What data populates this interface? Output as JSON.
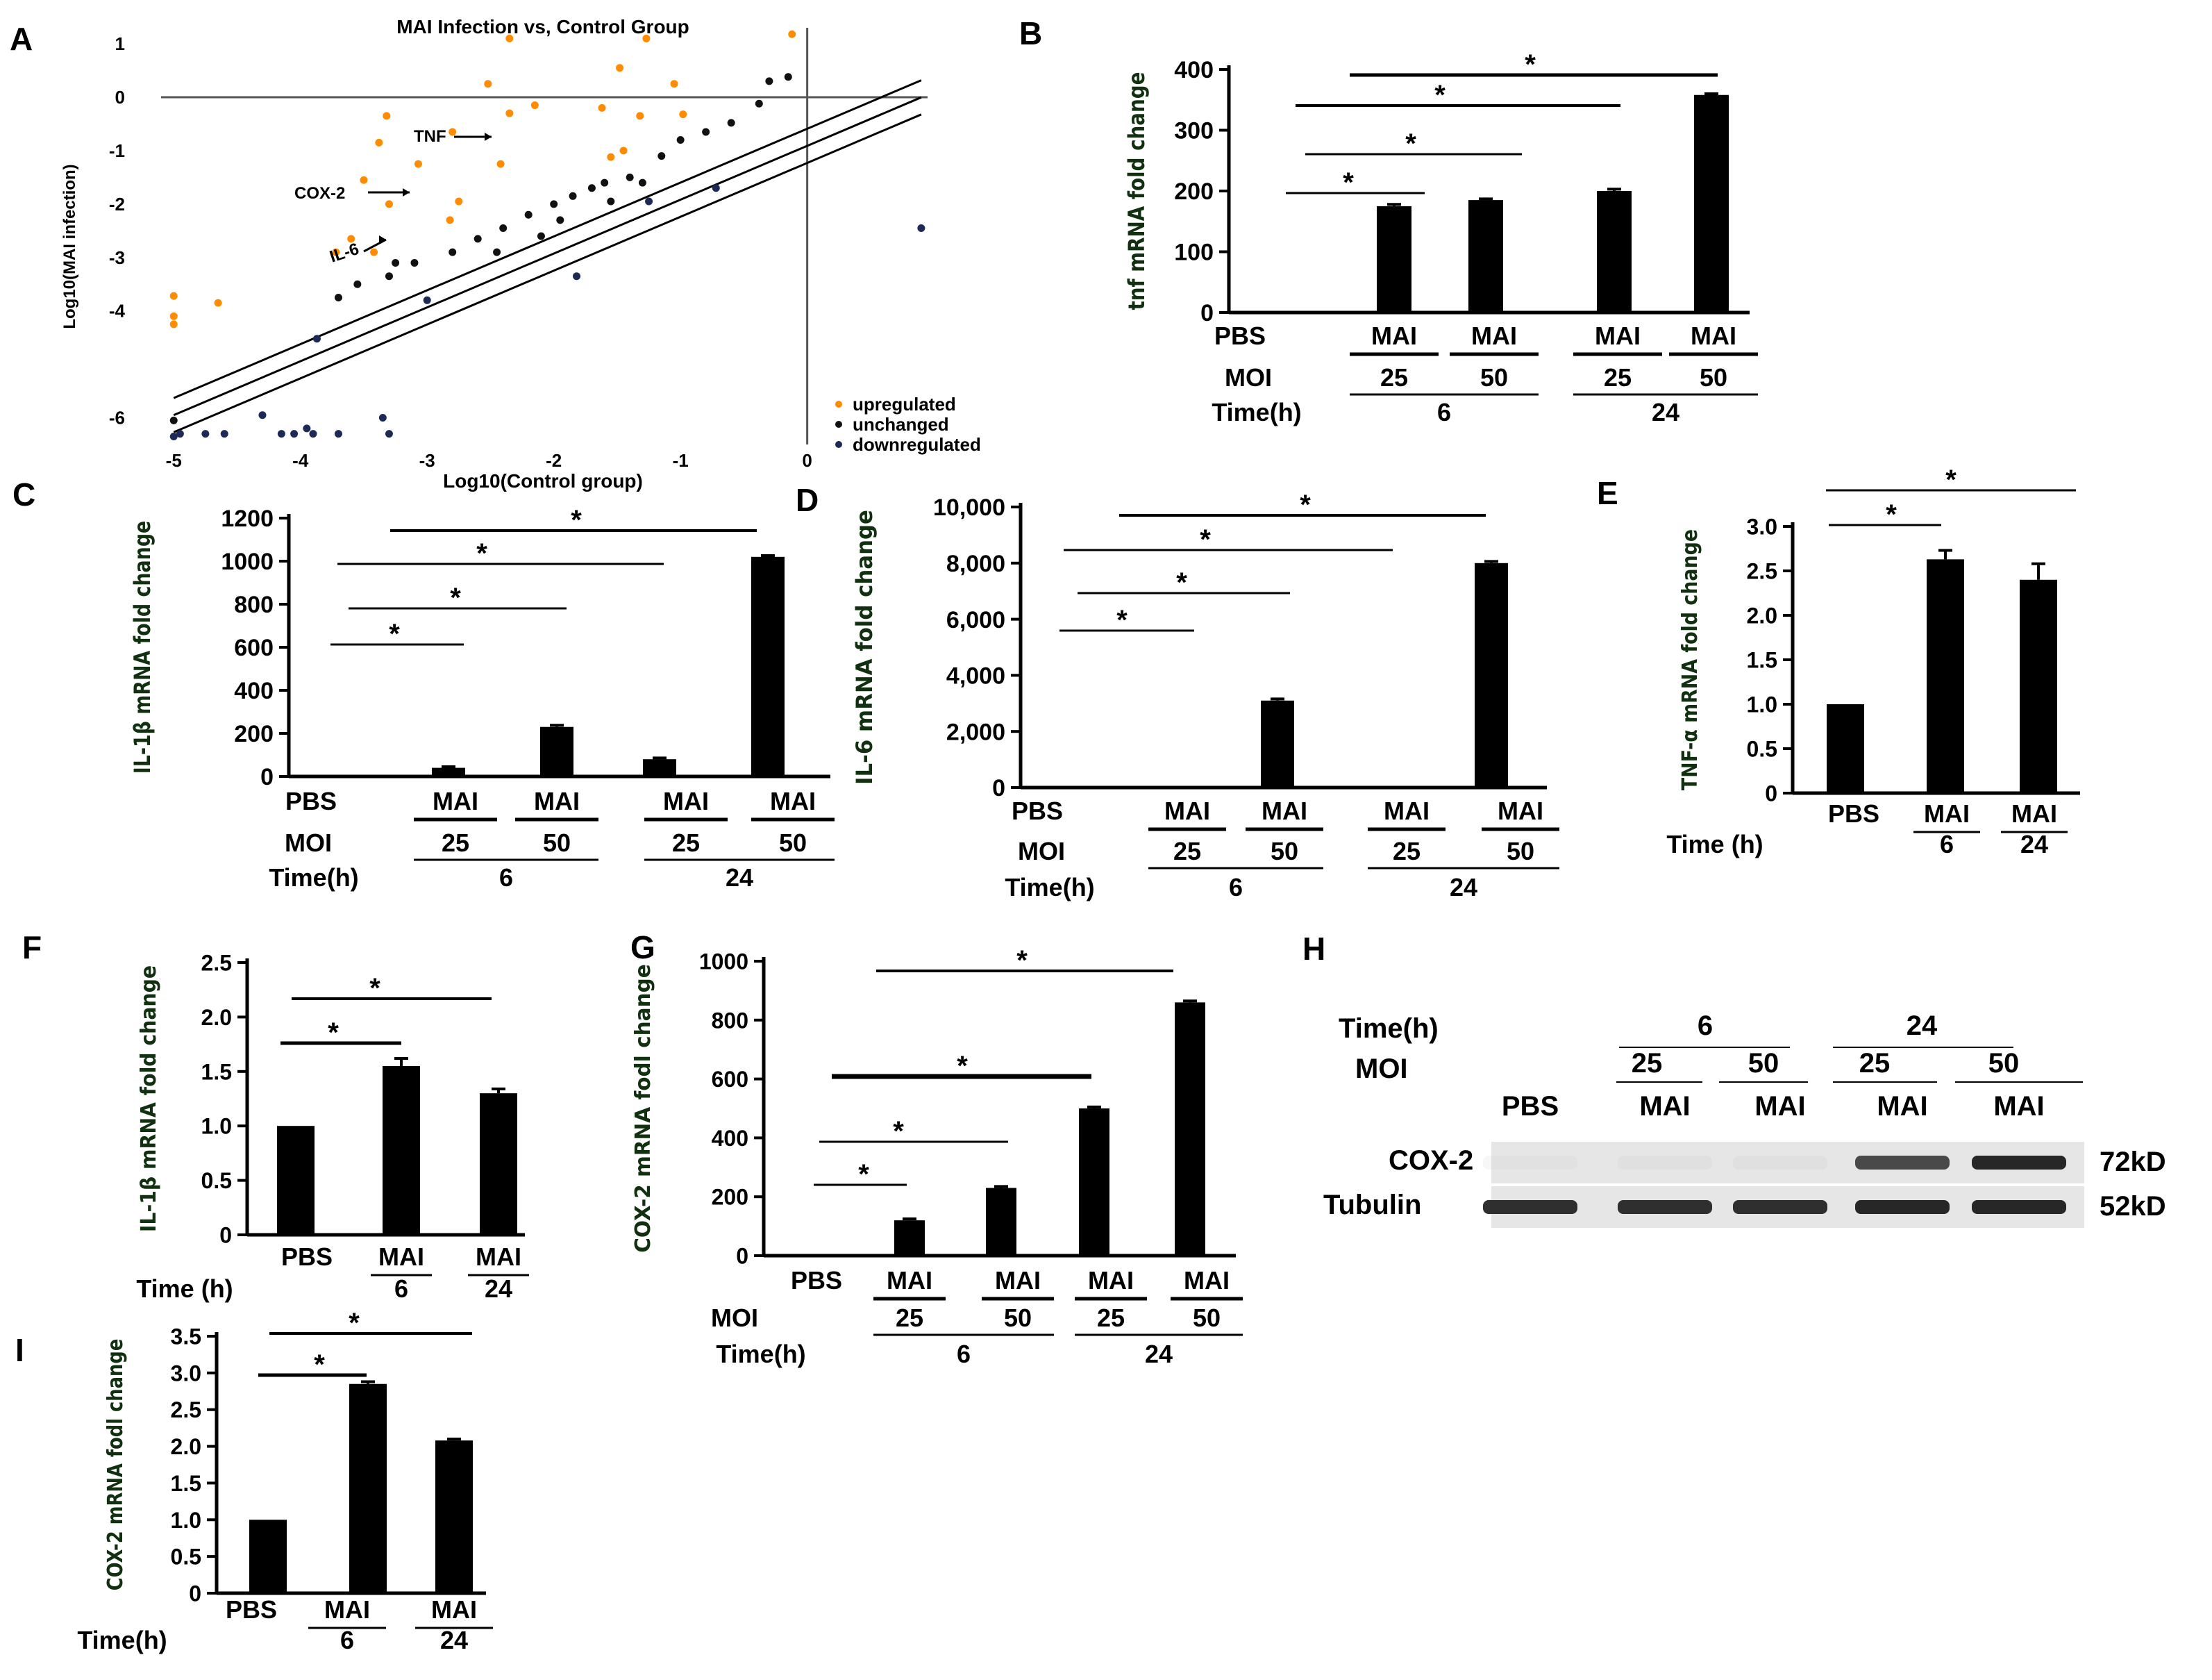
{
  "chart_data": [
    {
      "id": "A",
      "panel_letter": "A",
      "type": "scatter",
      "title": "MAI Infection vs, Control Group",
      "xlabel": "Log10(Control group)",
      "ylabel": "Log10(MAI infection)",
      "xlim": [
        -5.1,
        0.95
      ],
      "ylim": [
        -6.5,
        1.3
      ],
      "x_ticks": [
        -5,
        -4,
        -3,
        -2,
        -1,
        0
      ],
      "y_ticks": [
        1,
        0,
        -1,
        -2,
        -3,
        -4,
        -6
      ],
      "tick_labels_x": [
        "-5",
        "-4",
        "-3",
        "-2",
        "-1",
        "0"
      ],
      "tick_labels_y": [
        "1",
        "0",
        "-1",
        "-2",
        "-3",
        "-4",
        "-6"
      ],
      "annotations": [
        "TNF",
        "COX-2",
        "IL-6"
      ],
      "legend": [
        "upregulated",
        "unchanged",
        "downregulated"
      ],
      "legend_placement": "bottom-right",
      "colors": {
        "upregulated": "#ff8c00",
        "unchanged": "#111111",
        "downregulated": "#1c2a55"
      },
      "series": [
        {
          "name": "upregulated",
          "points": [
            [
              -2.35,
              1.1
            ],
            [
              -1.27,
              1.1
            ],
            [
              -0.12,
              1.18
            ],
            [
              -1.48,
              0.55
            ],
            [
              -1.05,
              0.25
            ],
            [
              -2.52,
              0.25
            ],
            [
              -3.32,
              -0.35
            ],
            [
              -2.35,
              -0.3
            ],
            [
              -1.62,
              -0.2
            ],
            [
              -1.32,
              -0.35
            ],
            [
              -0.98,
              -0.32
            ],
            [
              -2.15,
              -0.15
            ],
            [
              -2.8,
              -0.65
            ],
            [
              -3.38,
              -0.85
            ],
            [
              -2.42,
              -1.25
            ],
            [
              -1.55,
              -1.12
            ],
            [
              -1.45,
              -1.0
            ],
            [
              -3.07,
              -1.25
            ],
            [
              -3.5,
              -1.55
            ],
            [
              -3.3,
              -2.0
            ],
            [
              -2.75,
              -1.95
            ],
            [
              -2.82,
              -2.3
            ],
            [
              -3.6,
              -2.65
            ],
            [
              -3.72,
              -2.9
            ],
            [
              -3.42,
              -2.9
            ],
            [
              -4.65,
              -3.85
            ],
            [
              -5.0,
              -3.72
            ],
            [
              -5.0,
              -4.1
            ],
            [
              -5.0,
              -4.25
            ]
          ]
        },
        {
          "name": "unchanged",
          "points": [
            [
              -0.3,
              0.3
            ],
            [
              -0.15,
              0.38
            ],
            [
              -0.38,
              -0.12
            ],
            [
              -0.6,
              -0.48
            ],
            [
              -0.8,
              -0.65
            ],
            [
              -1.0,
              -0.8
            ],
            [
              -1.15,
              -1.1
            ],
            [
              -1.4,
              -1.5
            ],
            [
              -1.6,
              -1.6
            ],
            [
              -1.7,
              -1.7
            ],
            [
              -1.85,
              -1.85
            ],
            [
              -2.0,
              -2.0
            ],
            [
              -2.2,
              -2.2
            ],
            [
              -2.4,
              -2.45
            ],
            [
              -2.6,
              -2.65
            ],
            [
              -2.8,
              -2.9
            ],
            [
              -3.1,
              -3.1
            ],
            [
              -3.3,
              -3.35
            ],
            [
              -3.55,
              -3.5
            ],
            [
              -3.7,
              -3.75
            ],
            [
              -2.45,
              -2.9
            ],
            [
              -2.1,
              -2.6
            ],
            [
              -1.95,
              -2.3
            ],
            [
              -1.55,
              -1.95
            ],
            [
              -1.3,
              -1.6
            ],
            [
              -3.25,
              -3.1
            ],
            [
              -5.0,
              -6.05
            ]
          ]
        },
        {
          "name": "downregulated",
          "points": [
            [
              0.9,
              -2.45
            ],
            [
              -0.72,
              -1.7
            ],
            [
              -1.25,
              -1.95
            ],
            [
              -1.82,
              -3.35
            ],
            [
              -3.0,
              -3.8
            ],
            [
              -3.87,
              -4.52
            ],
            [
              -4.3,
              -5.95
            ],
            [
              -4.05,
              -6.3
            ],
            [
              -3.9,
              -6.3
            ],
            [
              -4.15,
              -6.3
            ],
            [
              -3.95,
              -6.2
            ],
            [
              -3.3,
              -6.3
            ],
            [
              -3.35,
              -6.0
            ],
            [
              -3.7,
              -6.3
            ],
            [
              -4.75,
              -6.3
            ],
            [
              -4.95,
              -6.3
            ],
            [
              -5.0,
              -6.35
            ],
            [
              -4.6,
              -6.3
            ]
          ]
        }
      ]
    },
    {
      "id": "B",
      "panel_letter": "B",
      "type": "bar",
      "ylabel": "tnf mRNA fold change",
      "ylim": [
        0,
        400
      ],
      "yticks": [
        0,
        100,
        200,
        300,
        400
      ],
      "ytick_labels": [
        "0",
        "100",
        "200",
        "300",
        "400"
      ],
      "categories": [
        "PBS",
        "MAI",
        "MAI",
        "MAI",
        "MAI"
      ],
      "values": [
        1,
        175,
        185,
        200,
        358
      ],
      "errors": [
        0,
        3,
        2,
        3,
        2
      ],
      "row_labels": {
        "row2": "PBS",
        "moi": "MOI",
        "time": "Time(h)"
      },
      "moi_values": [
        "25",
        "50",
        "25",
        "50"
      ],
      "time_values": [
        "6",
        "24"
      ],
      "significance": [
        "*",
        "*",
        "*",
        "*"
      ]
    },
    {
      "id": "C",
      "panel_letter": "C",
      "type": "bar",
      "ylabel": "IL-1β mRNA fold change",
      "ylim": [
        0,
        1200
      ],
      "yticks": [
        0,
        200,
        400,
        600,
        800,
        1000,
        1200
      ],
      "ytick_labels": [
        "0",
        "200",
        "400",
        "600",
        "800",
        "1000",
        "1200"
      ],
      "categories": [
        "PBS",
        "MAI",
        "MAI",
        "MAI",
        "MAI"
      ],
      "values": [
        1,
        40,
        230,
        80,
        1020
      ],
      "errors": [
        0,
        5,
        8,
        6,
        6
      ],
      "row_labels": {
        "row2": "PBS",
        "moi": "MOI",
        "time": "Time(h)"
      },
      "moi_values": [
        "25",
        "50",
        "25",
        "50"
      ],
      "time_values": [
        "6",
        "24"
      ],
      "significance": [
        "*",
        "*",
        "*",
        "*"
      ]
    },
    {
      "id": "D",
      "panel_letter": "D",
      "type": "bar",
      "ylabel": "IL-6 mRNA fold change",
      "ylim": [
        0,
        10000
      ],
      "yticks": [
        0,
        2000,
        4000,
        6000,
        8000,
        10000
      ],
      "ytick_labels": [
        "0",
        "2,000",
        "4,000",
        "6,000",
        "8,000",
        "10,000"
      ],
      "categories": [
        "PBS",
        "MAI",
        "MAI",
        "MAI",
        "MAI"
      ],
      "values": [
        1,
        20,
        3100,
        30,
        8000
      ],
      "errors": [
        0,
        0,
        60,
        0,
        60
      ],
      "row_labels": {
        "row2": "PBS",
        "moi": "MOI",
        "time": "Time(h)"
      },
      "moi_values": [
        "25",
        "50",
        "25",
        "50"
      ],
      "time_values": [
        "6",
        "24"
      ],
      "significance": [
        "*",
        "*",
        "*",
        "*"
      ]
    },
    {
      "id": "E",
      "panel_letter": "E",
      "type": "bar",
      "ylabel": "TNF-α mRNA fold change",
      "ylim": [
        0,
        3.0
      ],
      "yticks": [
        0,
        0.5,
        1.0,
        1.5,
        2.0,
        2.5,
        3.0
      ],
      "ytick_labels": [
        "0",
        "0.5",
        "1.0",
        "1.5",
        "2.0",
        "2.5",
        "3.0"
      ],
      "categories": [
        "PBS",
        "MAI",
        "MAI"
      ],
      "values": [
        1.0,
        2.63,
        2.4
      ],
      "errors": [
        0,
        0.1,
        0.18
      ],
      "time_label": "Time (h)",
      "time_values": [
        "6",
        "24"
      ],
      "significance": [
        "*",
        "*"
      ]
    },
    {
      "id": "F",
      "panel_letter": "F",
      "type": "bar",
      "ylabel": "IL-1β mRNA fold change",
      "ylim": [
        0,
        2.5
      ],
      "yticks": [
        0,
        0.5,
        1.0,
        1.5,
        2.0,
        2.5
      ],
      "ytick_labels": [
        "0",
        "0.5",
        "1.0",
        "1.5",
        "2.0",
        "2.5"
      ],
      "categories": [
        "PBS",
        "MAI",
        "MAI"
      ],
      "values": [
        1.0,
        1.55,
        1.3
      ],
      "errors": [
        0,
        0.07,
        0.04
      ],
      "time_label": "Time (h)",
      "time_values": [
        "6",
        "24"
      ],
      "significance": [
        "*",
        "*"
      ]
    },
    {
      "id": "G",
      "panel_letter": "G",
      "type": "bar",
      "ylabel": "COX-2 mRNA fodl change",
      "ylim": [
        0,
        1000
      ],
      "yticks": [
        0,
        200,
        400,
        600,
        800,
        1000
      ],
      "ytick_labels": [
        "0",
        "200",
        "400",
        "600",
        "800",
        "1000"
      ],
      "categories": [
        "PBS",
        "MAI",
        "MAI",
        "MAI",
        "MAI"
      ],
      "values": [
        1,
        120,
        230,
        500,
        860
      ],
      "errors": [
        0,
        5,
        5,
        5,
        5
      ],
      "row_labels": {
        "row2": "PBS",
        "moi": "MOI",
        "time": "Time(h)"
      },
      "moi_values": [
        "25",
        "50",
        "25",
        "50"
      ],
      "time_values": [
        "6",
        "24"
      ],
      "significance": [
        "*",
        "*",
        "*",
        "*"
      ]
    },
    {
      "id": "I",
      "panel_letter": "I",
      "type": "bar",
      "ylabel": "COX-2 mRNA fodl change",
      "ylim": [
        0,
        3.5
      ],
      "yticks": [
        0,
        0.5,
        1.0,
        1.5,
        2.0,
        2.5,
        3.0,
        3.5
      ],
      "ytick_labels": [
        "0",
        "0.5",
        "1.0",
        "1.5",
        "2.0",
        "2.5",
        "3.0",
        "3.5"
      ],
      "categories": [
        "PBS",
        "MAI",
        "MAI"
      ],
      "values": [
        1.0,
        2.85,
        2.08
      ],
      "errors": [
        0,
        0.03,
        0.02
      ],
      "time_label": "Time(h)",
      "time_values": [
        "6",
        "24"
      ],
      "significance": [
        "*",
        "*"
      ]
    }
  ],
  "blot": {
    "panel_letter": "H",
    "time_label": "Time(h)",
    "moi_label": "MOI",
    "time_values": [
      "6",
      "24"
    ],
    "moi_values": [
      "25",
      "50",
      "25",
      "50"
    ],
    "lanes": [
      "PBS",
      "MAI",
      "MAI",
      "MAI",
      "MAI"
    ],
    "rows": [
      {
        "name": "COX-2",
        "size": "72kD",
        "band_intensity": [
          0.0,
          0.05,
          0.05,
          0.75,
          0.95
        ]
      },
      {
        "name": "Tubulin",
        "size": "52kD",
        "band_intensity": [
          0.9,
          0.9,
          0.9,
          0.95,
          0.95
        ]
      }
    ]
  }
}
